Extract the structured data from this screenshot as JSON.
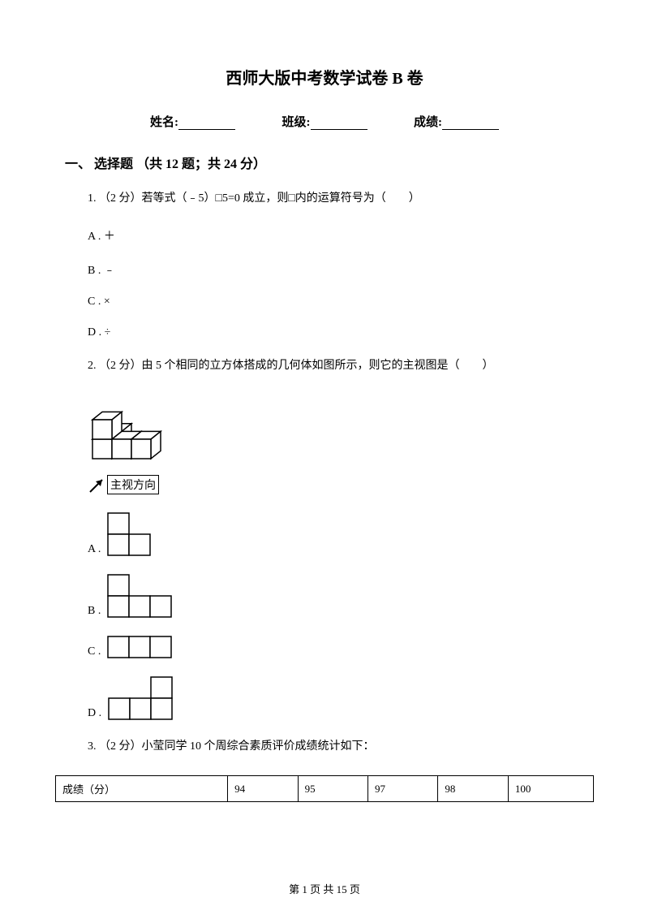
{
  "title": "西师大版中考数学试卷 B 卷",
  "info": {
    "name_label": "姓名:",
    "class_label": "班级:",
    "score_label": "成绩:"
  },
  "section1": {
    "heading": "一、 选择题 （共 12 题；共 24 分）",
    "q1": {
      "text": "1. （2 分）若等式（﹣5）□5=0 成立，则□内的运算符号为（　　）",
      "options": {
        "A": "A . ＋",
        "B": "B . ﹣",
        "C": "C . ×",
        "D": "D . ÷"
      }
    },
    "q2": {
      "text": "2. （2 分）由 5 个相同的立方体搭成的几何体如图所示，则它的主视图是（　　）",
      "view_label": "主视方向",
      "figure_3d": {
        "cube_size": 24,
        "stroke": "#000000",
        "fill": "#ffffff"
      },
      "options": {
        "A": {
          "label": "A .",
          "type": "grid",
          "cell": 26,
          "stroke": "#000000",
          "cells": [
            [
              0,
              0
            ],
            [
              0,
              1
            ],
            [
              1,
              1
            ]
          ]
        },
        "B": {
          "label": "B .",
          "type": "grid",
          "cell": 26,
          "stroke": "#000000",
          "cells": [
            [
              0,
              0
            ],
            [
              0,
              1
            ],
            [
              1,
              1
            ],
            [
              2,
              1
            ]
          ]
        },
        "C": {
          "label": "C .",
          "type": "grid",
          "cell": 26,
          "stroke": "#000000",
          "cells": [
            [
              0,
              0
            ],
            [
              1,
              0
            ],
            [
              2,
              0
            ]
          ]
        },
        "D": {
          "label": "D .",
          "type": "grid",
          "cell": 26,
          "stroke": "#000000",
          "cells": [
            [
              2,
              0
            ],
            [
              0,
              1
            ],
            [
              1,
              1
            ],
            [
              2,
              1
            ]
          ]
        }
      }
    },
    "q3": {
      "text": "3. （2 分）小莹同学 10 个周综合素质评价成绩统计如下：",
      "table": {
        "header": "成绩（分）",
        "values": [
          "94",
          "95",
          "97",
          "98",
          "100"
        ]
      }
    }
  },
  "footer": "第 1 页 共 15 页"
}
